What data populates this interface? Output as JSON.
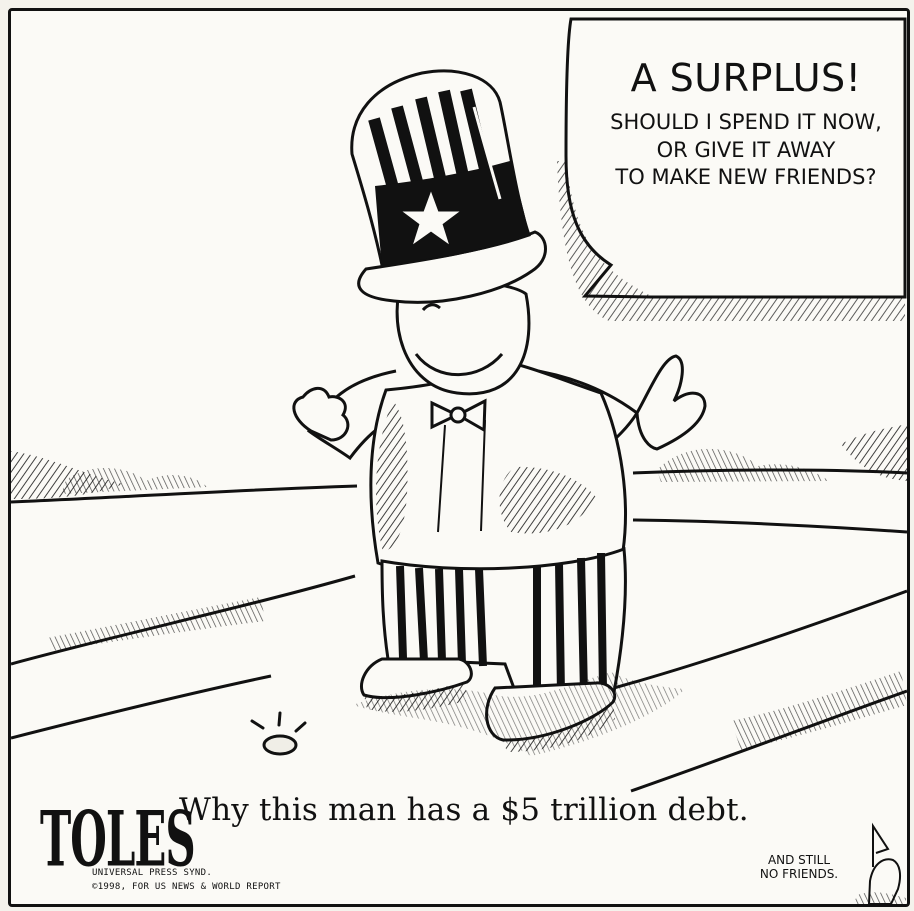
{
  "speech_bubble": {
    "title": "A SURPLUS!",
    "lines": [
      "SHOULD I SPEND IT NOW,",
      "OR GIVE IT AWAY",
      "TO MAKE NEW FRIENDS?"
    ]
  },
  "caption": "Why this man has a $5 trillion debt.",
  "signature": "TOLES",
  "credit": [
    "UNIVERSAL PRESS SYND.",
    "©1998, FOR US NEWS & WORLD REPORT"
  ],
  "small_note": [
    "AND STILL",
    "NO FRIENDS."
  ],
  "colors": {
    "ink": "#111111",
    "paper": "#fbfaf6",
    "shade": "#d8d4cb"
  },
  "icons": {
    "coin": "coin-icon",
    "star": "star-icon"
  }
}
